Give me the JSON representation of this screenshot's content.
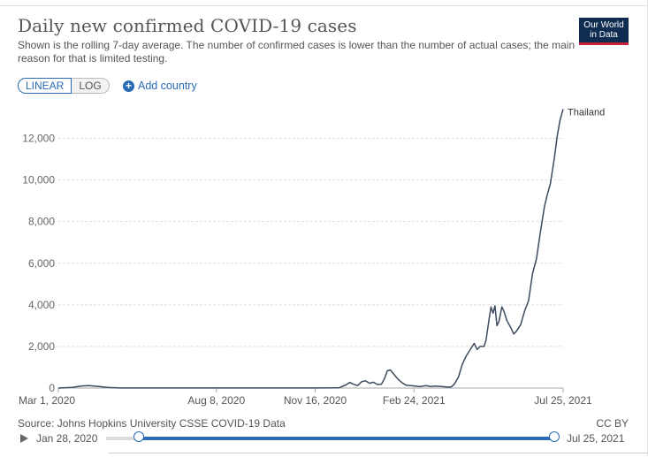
{
  "title": "Daily new confirmed COVID-19 cases",
  "subtitle": "Shown is the rolling 7-day average. The number of confirmed cases is lower than the number of actual cases; the main reason for that is limited testing.",
  "logo": {
    "line1": "Our World",
    "line2": "in Data"
  },
  "controls": {
    "linear_label": "LINEAR",
    "log_label": "LOG",
    "add_country_label": "Add country",
    "active_scale": "linear"
  },
  "source": "Source: Johns Hopkins University CSSE COVID-19 Data",
  "license": "CC BY",
  "timeline": {
    "start_label": "Jan 28, 2020",
    "end_label": "Jul 25, 2021",
    "range_start_fraction": 0.07,
    "range_end_fraction": 1.0
  },
  "colors": {
    "line": "#3c4b5e",
    "accent": "#2a6bb5",
    "logo_bg": "#0f2c51",
    "logo_bar": "#c4233a"
  },
  "chart_data": {
    "type": "line",
    "x_type": "date",
    "xlim": [
      "2020-03-01",
      "2021-07-25"
    ],
    "ylim": [
      0,
      13500
    ],
    "y_ticks": [
      0,
      2000,
      4000,
      6000,
      8000,
      10000,
      12000
    ],
    "y_tick_labels": [
      "0",
      "2,000",
      "4,000",
      "6,000",
      "8,000",
      "10,000",
      "12,000"
    ],
    "x_ticks": [
      "2020-03-01",
      "2020-08-08",
      "2020-11-16",
      "2021-02-24",
      "2021-07-25"
    ],
    "x_tick_labels": [
      "Mar 1, 2020",
      "Aug 8, 2020",
      "Nov 16, 2020",
      "Feb 24, 2021",
      "Jul 25, 2021"
    ],
    "grid": "horizontal-dashed",
    "series": [
      {
        "name": "Thailand",
        "points": [
          [
            "2020-03-01",
            2
          ],
          [
            "2020-03-15",
            30
          ],
          [
            "2020-03-25",
            100
          ],
          [
            "2020-04-01",
            120
          ],
          [
            "2020-04-10",
            80
          ],
          [
            "2020-04-20",
            30
          ],
          [
            "2020-05-01",
            6
          ],
          [
            "2020-06-01",
            3
          ],
          [
            "2020-08-01",
            3
          ],
          [
            "2020-10-01",
            4
          ],
          [
            "2020-11-16",
            6
          ],
          [
            "2020-12-10",
            8
          ],
          [
            "2020-12-17",
            150
          ],
          [
            "2020-12-21",
            270
          ],
          [
            "2020-12-25",
            180
          ],
          [
            "2020-12-29",
            120
          ],
          [
            "2021-01-02",
            300
          ],
          [
            "2021-01-06",
            350
          ],
          [
            "2021-01-10",
            230
          ],
          [
            "2021-01-14",
            280
          ],
          [
            "2021-01-18",
            170
          ],
          [
            "2021-01-22",
            180
          ],
          [
            "2021-01-25",
            430
          ],
          [
            "2021-01-28",
            830
          ],
          [
            "2021-01-31",
            870
          ],
          [
            "2021-02-04",
            640
          ],
          [
            "2021-02-08",
            420
          ],
          [
            "2021-02-12",
            250
          ],
          [
            "2021-02-16",
            140
          ],
          [
            "2021-02-22",
            110
          ],
          [
            "2021-03-02",
            70
          ],
          [
            "2021-03-08",
            120
          ],
          [
            "2021-03-13",
            75
          ],
          [
            "2021-03-18",
            95
          ],
          [
            "2021-03-24",
            75
          ],
          [
            "2021-03-30",
            45
          ],
          [
            "2021-04-03",
            60
          ],
          [
            "2021-04-06",
            200
          ],
          [
            "2021-04-10",
            530
          ],
          [
            "2021-04-14",
            1150
          ],
          [
            "2021-04-18",
            1550
          ],
          [
            "2021-04-22",
            1850
          ],
          [
            "2021-04-26",
            2150
          ],
          [
            "2021-04-29",
            1850
          ],
          [
            "2021-05-02",
            2000
          ],
          [
            "2021-05-06",
            2000
          ],
          [
            "2021-05-08",
            2300
          ],
          [
            "2021-05-11",
            3300
          ],
          [
            "2021-05-13",
            3900
          ],
          [
            "2021-05-15",
            3600
          ],
          [
            "2021-05-17",
            3950
          ],
          [
            "2021-05-19",
            3000
          ],
          [
            "2021-05-21",
            3200
          ],
          [
            "2021-05-24",
            3900
          ],
          [
            "2021-05-26",
            3700
          ],
          [
            "2021-05-29",
            3250
          ],
          [
            "2021-06-02",
            2900
          ],
          [
            "2021-06-05",
            2600
          ],
          [
            "2021-06-08",
            2750
          ],
          [
            "2021-06-12",
            3050
          ],
          [
            "2021-06-16",
            3700
          ],
          [
            "2021-06-20",
            4200
          ],
          [
            "2021-06-24",
            5500
          ],
          [
            "2021-06-28",
            6200
          ],
          [
            "2021-07-02",
            7500
          ],
          [
            "2021-07-06",
            8700
          ],
          [
            "2021-07-09",
            9300
          ],
          [
            "2021-07-12",
            9800
          ],
          [
            "2021-07-16",
            11000
          ],
          [
            "2021-07-19",
            12100
          ],
          [
            "2021-07-22",
            12900
          ],
          [
            "2021-07-25",
            13400
          ]
        ]
      }
    ]
  }
}
